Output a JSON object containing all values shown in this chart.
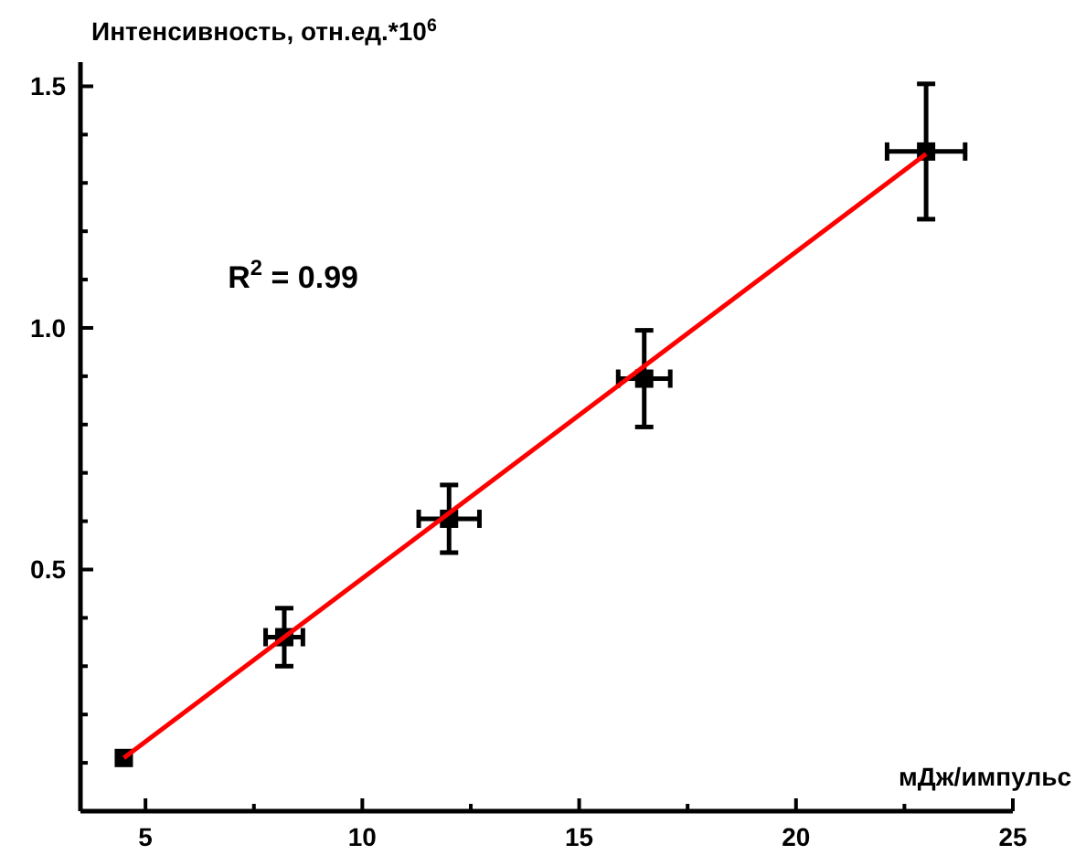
{
  "chart_data": {
    "type": "scatter",
    "xlabel": "мДж/импульс",
    "ylabel": "Интенсивность, отн.ед.*10$^{6}$",
    "annotations": [
      "R$^{2}$ = 0.99"
    ],
    "xlim": [
      3.5,
      25
    ],
    "ylim": [
      0,
      1.55
    ],
    "xticks": [
      5,
      {
        "value": 7.5,
        "label": null
      },
      10,
      {
        "value": 12.5,
        "label": null
      },
      15,
      {
        "value": 17.5,
        "label": null
      },
      20,
      {
        "value": 22.5,
        "label": null
      },
      25
    ],
    "yticks": [
      {
        "value": 0.1,
        "label": null
      },
      {
        "value": 0.2,
        "label": null
      },
      {
        "value": 0.3,
        "label": null
      },
      {
        "value": 0.4,
        "label": null
      },
      {
        "value": 0.5,
        "label": "0.5"
      },
      {
        "value": 0.6,
        "label": null
      },
      {
        "value": 0.7,
        "label": null
      },
      {
        "value": 0.8,
        "label": null
      },
      {
        "value": 0.9,
        "label": null
      },
      {
        "value": 1.0,
        "label": "1.0"
      },
      {
        "value": 1.1,
        "label": null
      },
      {
        "value": 1.2,
        "label": null
      },
      {
        "value": 1.3,
        "label": null
      },
      {
        "value": 1.4,
        "label": null
      },
      {
        "value": 1.5,
        "label": "1.5"
      }
    ],
    "grid": false,
    "marker": "square",
    "series": [
      {
        "color": "#000000",
        "x": [
          4.5,
          8.2,
          12.0,
          16.5,
          23.0
        ],
        "values": [
          0.11,
          0.36,
          0.605,
          0.895,
          1.365
        ],
        "errors": [
          null,
          0.06,
          0.07,
          0.1,
          0.14
        ],
        "xerrors": [
          null,
          0.43,
          0.7,
          0.6,
          0.9
        ]
      },
      {
        "type": "line",
        "color": "#ff0000",
        "x": [
          4.5,
          23.0
        ],
        "values": [
          0.11,
          1.36
        ],
        "marker": "none",
        "line_style": "solid"
      }
    ]
  }
}
